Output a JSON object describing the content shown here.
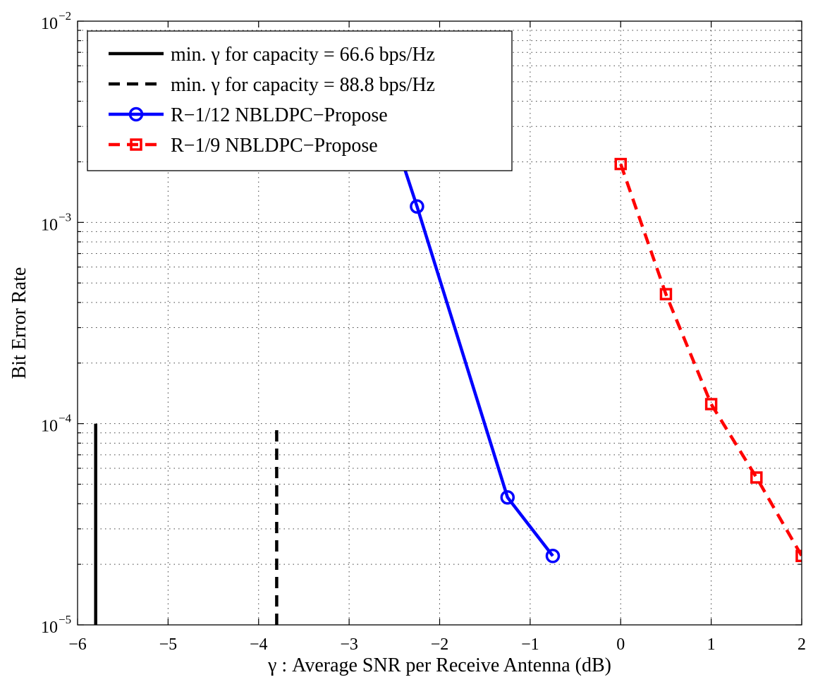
{
  "chart_data": {
    "type": "line",
    "title": "",
    "xlabel": "γ : Average SNR per Receive Antenna (dB)",
    "ylabel": "Bit Error Rate",
    "xlim": [
      -6,
      2
    ],
    "ylim": [
      1e-05,
      0.01
    ],
    "yscale": "log",
    "grid": true,
    "legend_position": "top-left",
    "x_ticks": [
      -6,
      -5,
      -4,
      -3,
      -2,
      -1,
      0,
      1,
      2
    ],
    "x_tick_labels": [
      "−6",
      "−5",
      "−4",
      "−3",
      "−2",
      "−1",
      "0",
      "1",
      "2"
    ],
    "y_ticks": [
      {
        "value": 1e-05,
        "base": "10",
        "exp": "−5"
      },
      {
        "value": 0.0001,
        "base": "10",
        "exp": "−4"
      },
      {
        "value": 0.001,
        "base": "10",
        "exp": "−3"
      },
      {
        "value": 0.01,
        "base": "10",
        "exp": "−2"
      }
    ],
    "series": [
      {
        "name": "min. γ for capacity = 66.6 bps/Hz",
        "color": "#000000",
        "style": "solid",
        "marker": "none",
        "x": [
          -5.8,
          -5.8
        ],
        "y": [
          1e-05,
          0.0001
        ]
      },
      {
        "name": "min. γ for capacity = 88.8 bps/Hz",
        "color": "#000000",
        "style": "dashed",
        "marker": "none",
        "x": [
          -3.8,
          -3.8
        ],
        "y": [
          1e-05,
          0.0001
        ]
      },
      {
        "name": "R−1/12 NBLDPC−Propose",
        "color": "#0000ff",
        "style": "solid",
        "marker": "circle",
        "x": [
          -2.75,
          -2.25,
          -1.25,
          -0.75
        ],
        "y": [
          0.0058,
          0.0012,
          4.3e-05,
          2.2e-05
        ]
      },
      {
        "name": "R−1/9 NBLDPC−Propose",
        "color": "#ff0000",
        "style": "dashed",
        "marker": "square",
        "x": [
          0,
          0.5,
          1,
          1.5,
          2
        ],
        "y": [
          0.00195,
          0.00044,
          0.000125,
          5.4e-05,
          2.2e-05
        ]
      }
    ]
  }
}
